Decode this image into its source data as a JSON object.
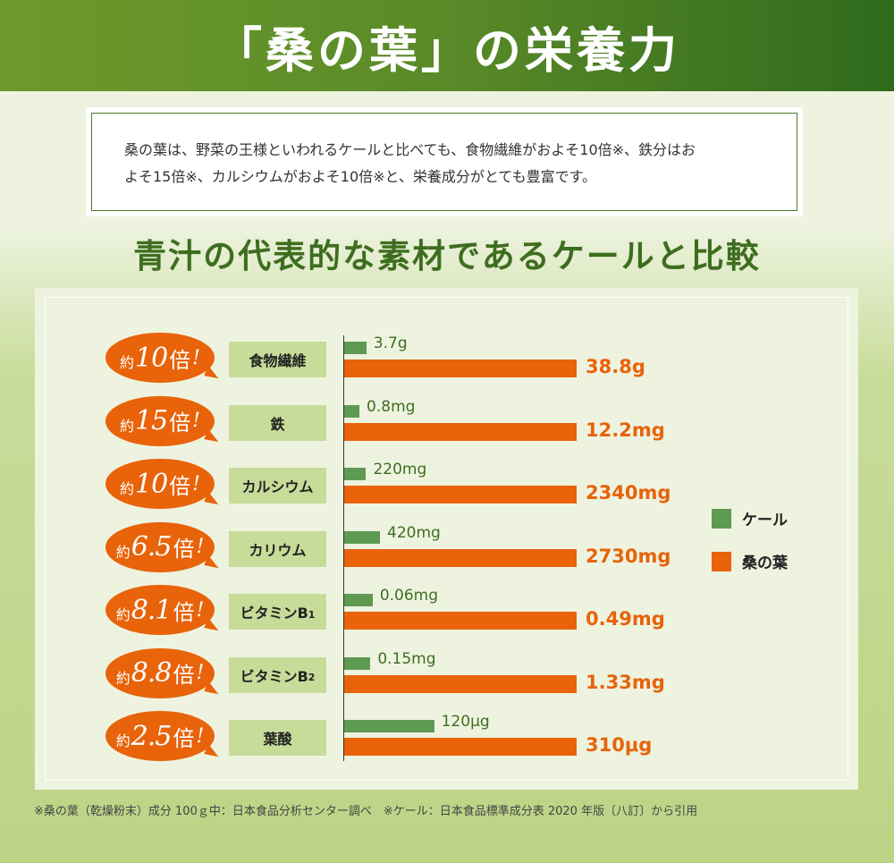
{
  "header": {
    "title": "「桑の葉」の栄養力"
  },
  "intro": {
    "line1": "桑の葉は、野菜の王様といわれるケールと比べても、食物繊維がおよそ10倍※、鉄分はお",
    "line2": "よそ15倍※、カルシウムがおよそ10倍※と、栄養成分がとても豊富です。"
  },
  "subtitle": "青汁の代表的な素材であるケールと比較",
  "legend": {
    "kale": "ケール",
    "mulberry": "桑の葉"
  },
  "colors": {
    "kale": "#5e9a52",
    "mulberry": "#e8630a",
    "header": "#5a8a28",
    "category": "#c8dc9a"
  },
  "chart_data": {
    "type": "bar",
    "orientation": "horizontal",
    "series": [
      {
        "name": "ケール",
        "labels": [
          "3.7g",
          "0.8mg",
          "220mg",
          "420mg",
          "0.06mg",
          "0.15mg",
          "120μg"
        ]
      },
      {
        "name": "桑の葉",
        "labels": [
          "38.8g",
          "12.2mg",
          "2340mg",
          "2730mg",
          "0.49mg",
          "1.33mg",
          "310μg"
        ]
      }
    ],
    "rows": [
      {
        "category": "食物繊維",
        "category_sub": "",
        "ratio_prefix": "約",
        "ratio": "10",
        "ratio_suffix": "倍",
        "ratio_ex": "!",
        "kale": 3.7,
        "mulberry": 38.8,
        "kale_label": "3.7g",
        "mulberry_label": "38.8g"
      },
      {
        "category": "鉄",
        "category_sub": "",
        "ratio_prefix": "約",
        "ratio": "15",
        "ratio_suffix": "倍",
        "ratio_ex": "!",
        "kale": 0.8,
        "mulberry": 12.2,
        "kale_label": "0.8mg",
        "mulberry_label": "12.2mg"
      },
      {
        "category": "カルシウム",
        "category_sub": "",
        "ratio_prefix": "約",
        "ratio": "10",
        "ratio_suffix": "倍",
        "ratio_ex": "!",
        "kale": 220,
        "mulberry": 2340,
        "kale_label": "220mg",
        "mulberry_label": "2340mg"
      },
      {
        "category": "カリウム",
        "category_sub": "",
        "ratio_prefix": "約",
        "ratio": "6.5",
        "ratio_suffix": "倍",
        "ratio_ex": "!",
        "kale": 420,
        "mulberry": 2730,
        "kale_label": "420mg",
        "mulberry_label": "2730mg"
      },
      {
        "category": "ビタミンB",
        "category_sub": "1",
        "ratio_prefix": "約",
        "ratio": "8.1",
        "ratio_suffix": "倍",
        "ratio_ex": "!",
        "kale": 0.06,
        "mulberry": 0.49,
        "kale_label": "0.06mg",
        "mulberry_label": "0.49mg"
      },
      {
        "category": "ビタミンB",
        "category_sub": "2",
        "ratio_prefix": "約",
        "ratio": "8.8",
        "ratio_suffix": "倍",
        "ratio_ex": "!",
        "kale": 0.15,
        "mulberry": 1.33,
        "kale_label": "0.15mg",
        "mulberry_label": "1.33mg"
      },
      {
        "category": "葉酸",
        "category_sub": "",
        "ratio_prefix": "約",
        "ratio": "2.5",
        "ratio_suffix": "倍",
        "ratio_ex": "!",
        "kale": 120,
        "mulberry": 310,
        "kale_label": "120μg",
        "mulberry_label": "310μg"
      }
    ]
  },
  "footnote": "※桑の葉（乾燥粉末）成分 100ｇ中：日本食品分析センター調べ　※ケール：日本食品標準成分表 2020 年版〔八訂〕から引用"
}
